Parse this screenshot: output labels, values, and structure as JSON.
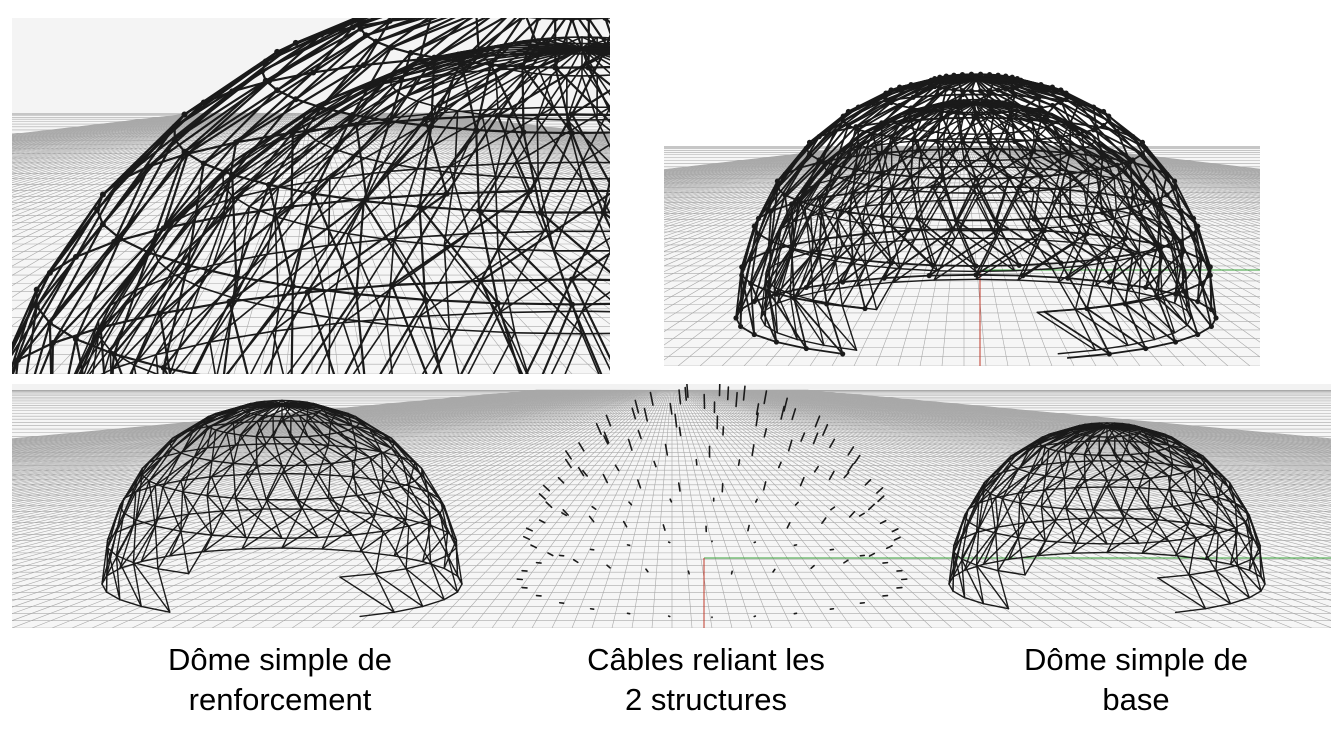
{
  "captions": {
    "reinforcement_dome": {
      "line1": "Dôme simple de",
      "line2": "renforcement"
    },
    "cables": {
      "line1": "Câbles reliant les",
      "line2": "2 structures"
    },
    "base_dome": {
      "line1": "Dôme simple de",
      "line2": "base"
    }
  },
  "colors": {
    "grid": "#a9a9a9",
    "structure": "#1a1a1a",
    "axis_x": "#3aa33a",
    "axis_y": "#c0392b"
  }
}
